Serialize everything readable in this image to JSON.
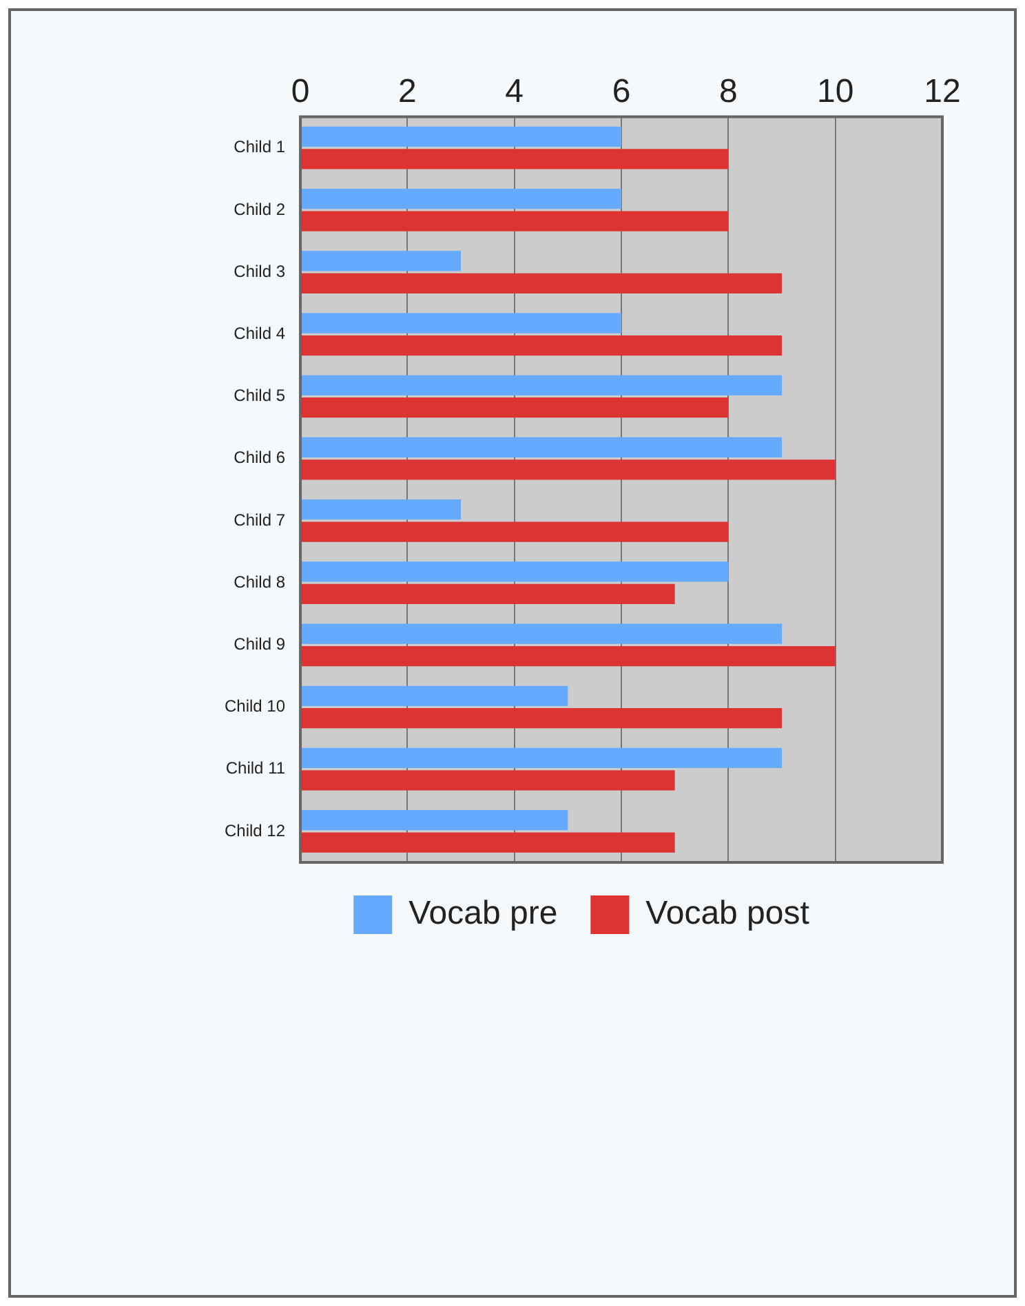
{
  "chart_data": {
    "type": "bar",
    "orientation": "horizontal",
    "categories": [
      "Child 1",
      "Child 2",
      "Child 3",
      "Child 4",
      "Child 5",
      "Child 6",
      "Child 7",
      "Child 8",
      "Child 9",
      "Child 10",
      "Child 11",
      "Child 12"
    ],
    "series": [
      {
        "name": "Vocab pre",
        "color": "#66aaff",
        "values": [
          6,
          6,
          3,
          6,
          9,
          9,
          3,
          8,
          9,
          5,
          9,
          5
        ]
      },
      {
        "name": "Vocab post",
        "color": "#dd3333",
        "values": [
          8,
          8,
          9,
          9,
          8,
          10,
          8,
          7,
          10,
          9,
          7,
          7
        ]
      }
    ],
    "xlim": [
      0,
      12
    ],
    "xticks": [
      0,
      2,
      4,
      6,
      8,
      10,
      12
    ],
    "grid": "x",
    "legend": "bottom"
  }
}
